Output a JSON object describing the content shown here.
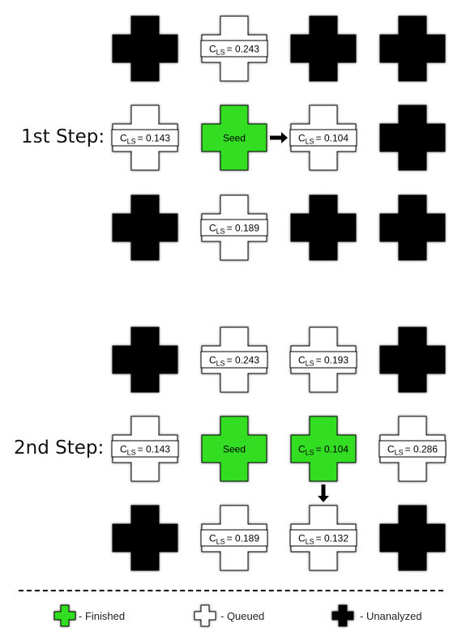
{
  "colors": {
    "finished": "#33dd22",
    "queued": "#ffffff",
    "unanalyzed": "#000000",
    "outline": "#000000"
  },
  "steps": [
    {
      "label": "1st Step:",
      "grid": [
        [
          {
            "state": "unanalyzed"
          },
          {
            "state": "queued",
            "symbol": "C",
            "subscript": "LS",
            "value": "= 0.243"
          },
          {
            "state": "unanalyzed"
          },
          {
            "state": "unanalyzed"
          }
        ],
        [
          {
            "state": "queued",
            "symbol": "C",
            "subscript": "LS",
            "value": "= 0.143"
          },
          {
            "state": "finished",
            "text": "Seed"
          },
          {
            "state": "queued",
            "symbol": "C",
            "subscript": "LS",
            "value": "= 0.104"
          },
          {
            "state": "unanalyzed"
          }
        ],
        [
          {
            "state": "unanalyzed"
          },
          {
            "state": "queued",
            "symbol": "C",
            "subscript": "LS",
            "value": "= 0.189"
          },
          {
            "state": "unanalyzed"
          },
          {
            "state": "unanalyzed"
          }
        ]
      ],
      "arrow": {
        "direction": "right",
        "from": [
          1,
          1
        ],
        "to": [
          1,
          2
        ]
      }
    },
    {
      "label": "2nd Step:",
      "grid": [
        [
          {
            "state": "unanalyzed"
          },
          {
            "state": "queued",
            "symbol": "C",
            "subscript": "LS",
            "value": "= 0.243"
          },
          {
            "state": "queued",
            "symbol": "C",
            "subscript": "LS",
            "value": "= 0.193"
          },
          {
            "state": "unanalyzed"
          }
        ],
        [
          {
            "state": "queued",
            "symbol": "C",
            "subscript": "LS",
            "value": "= 0.143"
          },
          {
            "state": "finished",
            "text": "Seed"
          },
          {
            "state": "finished",
            "symbol": "C",
            "subscript": "LS",
            "value": "= 0.104"
          },
          {
            "state": "queued",
            "symbol": "C",
            "subscript": "LS",
            "value": "= 0.286"
          }
        ],
        [
          {
            "state": "unanalyzed"
          },
          {
            "state": "queued",
            "symbol": "C",
            "subscript": "LS",
            "value": "= 0.189"
          },
          {
            "state": "queued",
            "symbol": "C",
            "subscript": "LS",
            "value": "= 0.132"
          },
          {
            "state": "unanalyzed"
          }
        ]
      ],
      "arrow": {
        "direction": "down",
        "from": [
          1,
          2
        ],
        "to": [
          2,
          2
        ]
      }
    }
  ],
  "legend": [
    {
      "state": "finished",
      "label": "- Finished"
    },
    {
      "state": "queued",
      "label": "- Queued"
    },
    {
      "state": "unanalyzed",
      "label": "- Unanalyzed"
    }
  ]
}
